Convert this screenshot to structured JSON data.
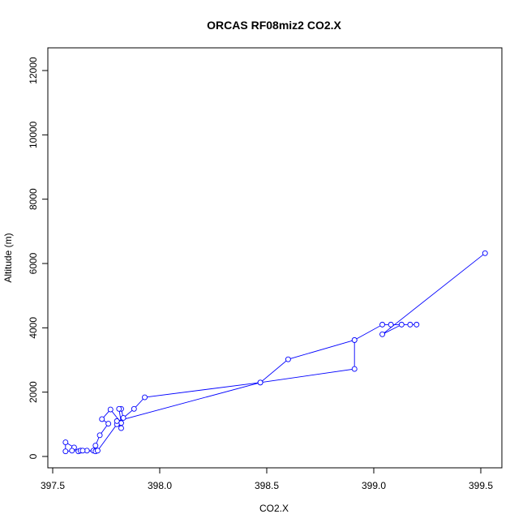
{
  "chart_data": {
    "type": "line",
    "title": "ORCAS RF08miz2 CO2.X",
    "xlabel": "CO2.X",
    "ylabel": "Altitude (m)",
    "xlim": [
      397.55,
      399.6
    ],
    "ylim": [
      0,
      12500
    ],
    "x_ticks": [
      397.5,
      398.0,
      398.5,
      399.0,
      399.5
    ],
    "x_tick_labels": [
      "397.5",
      "398.0",
      "398.5",
      "399.0",
      "399.5"
    ],
    "y_ticks": [
      0,
      2000,
      4000,
      6000,
      8000,
      10000,
      12000
    ],
    "y_tick_labels": [
      "0",
      "2000",
      "4000",
      "6000",
      "8000",
      "10000",
      "12000"
    ],
    "grid": false,
    "series": [
      {
        "color": "#0000ff",
        "marker": "open-circle",
        "points": [
          [
            399.52,
            6320
          ],
          [
            399.04,
            3800
          ],
          [
            399.13,
            4100
          ],
          [
            399.17,
            4100
          ],
          [
            399.2,
            4100
          ],
          [
            399.08,
            4100
          ],
          [
            399.04,
            4100
          ],
          [
            398.91,
            3620
          ],
          [
            398.91,
            2720
          ],
          [
            398.47,
            2300
          ],
          [
            397.93,
            1840
          ],
          [
            397.88,
            1480
          ],
          [
            397.83,
            1200
          ],
          [
            397.82,
            1480
          ],
          [
            397.81,
            1480
          ],
          [
            397.82,
            1040
          ],
          [
            397.77,
            1460
          ],
          [
            397.73,
            1160
          ],
          [
            397.76,
            1020
          ],
          [
            397.72,
            660
          ],
          [
            397.7,
            340
          ],
          [
            397.69,
            180
          ],
          [
            397.66,
            180
          ],
          [
            397.63,
            180
          ],
          [
            397.62,
            160
          ],
          [
            397.6,
            280
          ],
          [
            397.56,
            440
          ],
          [
            397.56,
            160
          ],
          [
            397.59,
            180
          ],
          [
            397.63,
            180
          ],
          [
            397.64,
            180
          ],
          [
            397.7,
            160
          ],
          [
            397.71,
            180
          ],
          [
            397.8,
            1000
          ],
          [
            397.82,
            880
          ],
          [
            397.8,
            1100
          ],
          [
            398.47,
            2300
          ],
          [
            398.6,
            3020
          ],
          [
            398.91,
            3620
          ]
        ]
      }
    ]
  }
}
